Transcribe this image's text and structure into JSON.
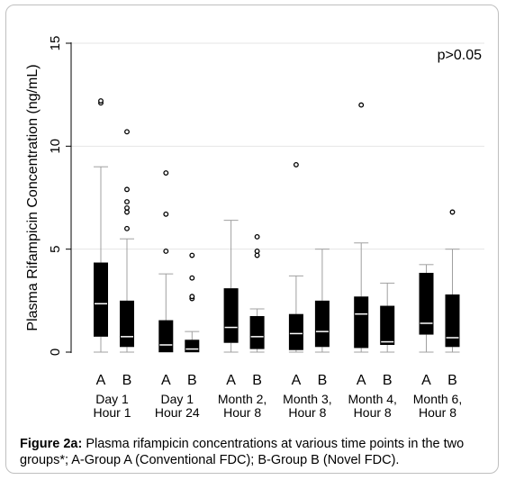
{
  "chart_data": {
    "type": "box",
    "ylabel": "Plasma Rifampicin Concentration (ng/mL)",
    "xlabel": "",
    "ylim": [
      0,
      15
    ],
    "yticks": [
      "0",
      "5",
      "10",
      "15"
    ],
    "ytick_values": [
      0,
      5,
      10,
      15
    ],
    "grid": true,
    "annotation": "p>0.05",
    "groups": [
      {
        "label_line1": "Day 1",
        "label_line2": "Hour 1",
        "boxes": [
          {
            "name": "A",
            "whisker_low": 0,
            "q1": 0.75,
            "median": 2.35,
            "q3": 4.35,
            "whisker_high": 9.0,
            "outliers": [
              12.1,
              12.2
            ]
          },
          {
            "name": "B",
            "whisker_low": 0,
            "q1": 0.25,
            "median": 0.75,
            "q3": 2.5,
            "whisker_high": 5.5,
            "outliers": [
              6.0,
              6.8,
              7.0,
              7.3,
              7.9,
              10.7
            ]
          }
        ]
      },
      {
        "label_line1": "Day 1",
        "label_line2": "Hour 24",
        "boxes": [
          {
            "name": "A",
            "whisker_low": 0,
            "q1": 0.0,
            "median": 0.35,
            "q3": 1.55,
            "whisker_high": 3.8,
            "outliers": [
              4.9,
              6.7,
              8.7
            ]
          },
          {
            "name": "B",
            "whisker_low": 0,
            "q1": 0.0,
            "median": 0.15,
            "q3": 0.6,
            "whisker_high": 1.0,
            "outliers": [
              2.6,
              2.7,
              3.6,
              4.7
            ]
          }
        ]
      },
      {
        "label_line1": "Month 2,",
        "label_line2": "Hour 8",
        "boxes": [
          {
            "name": "A",
            "whisker_low": 0,
            "q1": 0.45,
            "median": 1.2,
            "q3": 3.1,
            "whisker_high": 6.4,
            "outliers": []
          },
          {
            "name": "B",
            "whisker_low": 0,
            "q1": 0.15,
            "median": 0.75,
            "q3": 1.75,
            "whisker_high": 2.1,
            "outliers": [
              4.7,
              4.9,
              5.6
            ]
          }
        ]
      },
      {
        "label_line1": "Month 3,",
        "label_line2": "Hour 8",
        "boxes": [
          {
            "name": "A",
            "whisker_low": 0,
            "q1": 0.1,
            "median": 0.9,
            "q3": 1.85,
            "whisker_high": 3.7,
            "outliers": [
              9.1
            ]
          },
          {
            "name": "B",
            "whisker_low": 0,
            "q1": 0.25,
            "median": 1.0,
            "q3": 2.5,
            "whisker_high": 5.0,
            "outliers": []
          }
        ]
      },
      {
        "label_line1": "Month 4,",
        "label_line2": "Hour 8",
        "boxes": [
          {
            "name": "A",
            "whisker_low": 0,
            "q1": 0.2,
            "median": 1.85,
            "q3": 2.7,
            "whisker_high": 5.3,
            "outliers": [
              12.0
            ]
          },
          {
            "name": "B",
            "whisker_low": 0,
            "q1": 0.35,
            "median": 0.5,
            "q3": 2.25,
            "whisker_high": 3.35,
            "outliers": []
          }
        ]
      },
      {
        "label_line1": "Month 6,",
        "label_line2": "Hour 8",
        "boxes": [
          {
            "name": "A",
            "whisker_low": 0,
            "q1": 0.85,
            "median": 1.4,
            "q3": 3.85,
            "whisker_high": 4.25,
            "outliers": []
          },
          {
            "name": "B",
            "whisker_low": 0,
            "q1": 0.25,
            "median": 0.7,
            "q3": 2.8,
            "whisker_high": 5.0,
            "outliers": [
              6.8
            ]
          }
        ]
      }
    ]
  },
  "caption": {
    "label": "Figure 2a:",
    "text": " Plasma rifampicin concentrations at various time points in the two groups*; A-Group A (Conventional FDC); B-Group B (Novel FDC)."
  },
  "colors": {
    "box": "#000000",
    "grid": "#e4e4e4",
    "whisker": "#a0a0a0",
    "median": "#ffffff"
  }
}
